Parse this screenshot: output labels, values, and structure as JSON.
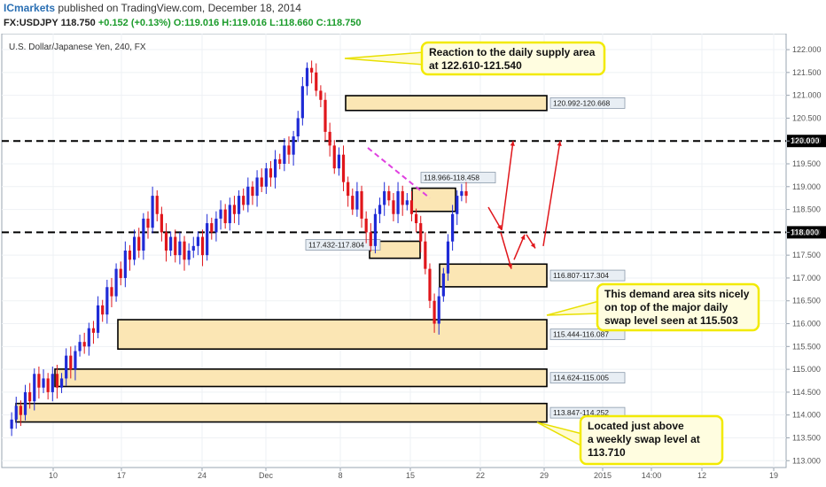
{
  "header": {
    "brand": "ICmarkets",
    "published": " published on TradingView.com, December 18, 2014",
    "symbol": "FX:USDJPY",
    "last": "118.750",
    "change": "+0.152 (+0.13%)",
    "open": "O:119.016",
    "high": "H:119.016",
    "low": "L:118.660",
    "close": "C:118.750"
  },
  "chart_data": {
    "type": "candlestick",
    "title": "U.S. Dollar/Japanese Yen, 240, FX",
    "ylim": [
      112.85,
      122.35
    ],
    "y_ticks": [
      "113.000",
      "113.500",
      "114.000",
      "114.500",
      "115.000",
      "115.500",
      "116.000",
      "116.500",
      "117.000",
      "117.500",
      "118.000",
      "118.500",
      "119.000",
      "119.500",
      "120.000",
      "120.500",
      "121.000",
      "121.500",
      "122.000"
    ],
    "x_ticks": [
      "10",
      "17",
      "24",
      "Dec",
      "8",
      "15",
      "22",
      "29",
      "2015",
      "14:00",
      "12",
      "19"
    ],
    "horizontal_levels": [
      {
        "value": 120.0,
        "label": "120.000"
      },
      {
        "value": 118.0,
        "label": "118.000"
      }
    ],
    "zones": [
      {
        "label": "120.992-120.668",
        "low": 120.668,
        "high": 120.992
      },
      {
        "label": "118.966-118.458",
        "low": 118.458,
        "high": 118.966
      },
      {
        "label": "117.432-117.804",
        "low": 117.432,
        "high": 117.804
      },
      {
        "label": "116.807-117.304",
        "low": 116.807,
        "high": 117.304
      },
      {
        "label": "115.444-116.087",
        "low": 115.444,
        "high": 116.087
      },
      {
        "label": "114.624-115.005",
        "low": 114.624,
        "high": 115.005
      },
      {
        "label": "113.847-114.252",
        "low": 113.847,
        "high": 114.252
      }
    ],
    "annotations": [
      {
        "lines": [
          "Reaction to the daily supply area",
          "at 122.610-121.540"
        ]
      },
      {
        "lines": [
          "This demand area sits nicely",
          "on top of the major daily",
          "swap level seen at 115.503"
        ]
      },
      {
        "lines": [
          "Located just above",
          "a weekly swap level at",
          "113.710"
        ]
      }
    ],
    "price_path": [
      113.7,
      113.9,
      114.2,
      114.0,
      114.5,
      114.3,
      114.9,
      114.6,
      114.8,
      114.5,
      114.9,
      114.6,
      114.8,
      115.3,
      115.0,
      115.4,
      115.6,
      115.5,
      115.9,
      115.8,
      116.4,
      116.2,
      116.8,
      116.6,
      117.2,
      117.0,
      117.6,
      117.4,
      117.9,
      117.6,
      118.3,
      118.1,
      118.8,
      118.4,
      118.0,
      117.6,
      117.9,
      117.5,
      117.8,
      117.4,
      117.6,
      117.7,
      117.9,
      117.5,
      118.2,
      118.0,
      118.3,
      118.5,
      118.2,
      118.6,
      118.4,
      118.8,
      118.6,
      119.0,
      118.8,
      119.2,
      119.0,
      119.4,
      119.2,
      119.6,
      119.5,
      119.9,
      119.7,
      120.1,
      120.5,
      121.2,
      121.6,
      121.5,
      121.1,
      120.9,
      120.2,
      119.9,
      119.4,
      119.7,
      119.1,
      118.8,
      118.5,
      118.9,
      118.3,
      118.0,
      117.7,
      118.4,
      118.6,
      118.9,
      118.7,
      118.4,
      118.9,
      118.6,
      118.7,
      118.4,
      118.2,
      117.8,
      117.2,
      116.5,
      116.0,
      116.6,
      117.1,
      117.8,
      118.4,
      118.8,
      118.9,
      118.8
    ]
  }
}
